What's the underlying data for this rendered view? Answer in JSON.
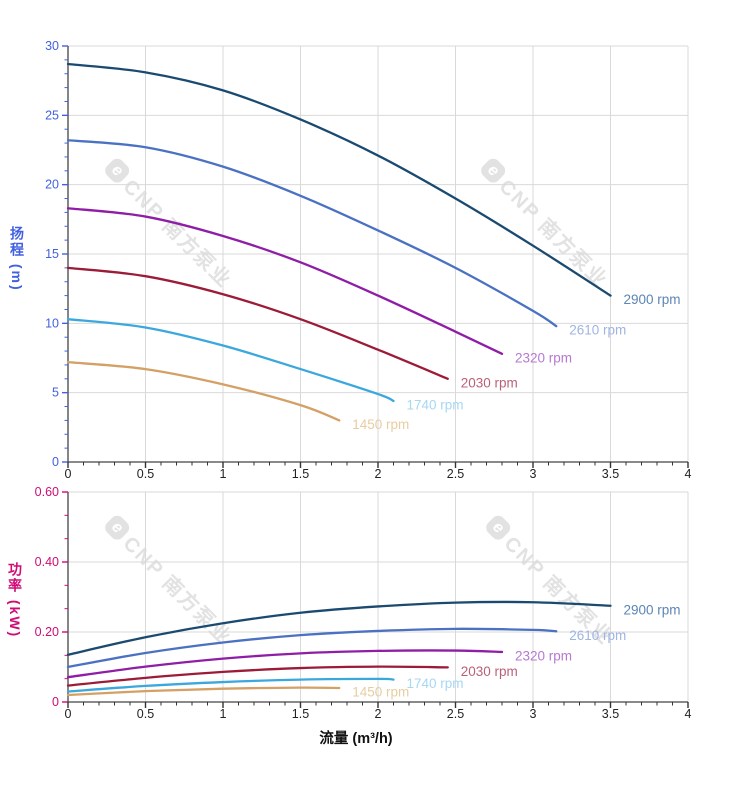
{
  "watermark": {
    "logo_letter": "e",
    "brand": "CNP 南方泵业",
    "color": "#e2e2e2"
  },
  "colors": {
    "grid": "#d9d9d9",
    "axis_line": "#444444",
    "x_tick": "#333333",
    "x_tick_label": "#222222",
    "head_axis": "#4161e0",
    "power_axis": "#cf0c75"
  },
  "chart_data": [
    {
      "type": "line",
      "title": "",
      "ylabel": "扬程 (m)",
      "xlabel": "",
      "legend_position": "curve-end-labels",
      "grid": true,
      "axis_color": "#4161e0",
      "x_axis": {
        "min": 0,
        "max": 4,
        "major": 0.5,
        "minor_divisions": 5,
        "tick_labels": [
          "0",
          "0.5",
          "1",
          "1.5",
          "2",
          "2.5",
          "3",
          "3.5",
          "4"
        ]
      },
      "y_axis": {
        "min": 0,
        "max": 30,
        "major": 5,
        "minor_divisions": 5,
        "tick_labels": [
          "0",
          "5",
          "10",
          "15",
          "20",
          "25",
          "30"
        ]
      },
      "series": [
        {
          "name": "2900 rpm",
          "color": "#1b4a70",
          "label_color": "#5c85b5",
          "x": [
            0,
            0.5,
            1,
            1.5,
            2,
            2.5,
            3,
            3.5
          ],
          "y": [
            28.7,
            28.1,
            26.8,
            24.7,
            22.1,
            19.0,
            15.6,
            12.0
          ]
        },
        {
          "name": "2610 rpm",
          "color": "#4a71c2",
          "label_color": "#9fb4e3",
          "x": [
            0,
            0.5,
            1,
            1.5,
            2,
            2.5,
            3,
            3.15
          ],
          "y": [
            23.2,
            22.7,
            21.3,
            19.2,
            16.7,
            14.0,
            10.9,
            9.8
          ]
        },
        {
          "name": "2320 rpm",
          "color": "#8f1da5",
          "label_color": "#b679d2",
          "x": [
            0,
            0.5,
            1,
            1.5,
            2,
            2.5,
            2.8
          ],
          "y": [
            18.3,
            17.7,
            16.3,
            14.4,
            12.0,
            9.4,
            7.8
          ]
        },
        {
          "name": "2030 rpm",
          "color": "#9c1c38",
          "label_color": "#b96078",
          "x": [
            0,
            0.5,
            1,
            1.5,
            2,
            2.45
          ],
          "y": [
            14.0,
            13.4,
            12.1,
            10.3,
            8.1,
            6.0
          ]
        },
        {
          "name": "1740 rpm",
          "color": "#3ba8dd",
          "label_color": "#a6d7f3",
          "x": [
            0,
            0.5,
            1,
            1.5,
            2,
            2.1
          ],
          "y": [
            10.3,
            9.7,
            8.4,
            6.7,
            4.9,
            4.4
          ]
        },
        {
          "name": "1450 rpm",
          "color": "#d4a065",
          "label_color": "#e7cda1",
          "x": [
            0,
            0.5,
            1,
            1.5,
            1.75
          ],
          "y": [
            7.2,
            6.7,
            5.6,
            4.1,
            3.0
          ]
        }
      ]
    },
    {
      "type": "line",
      "title": "",
      "ylabel": "功率 (kW)",
      "xlabel": "流量 (m³/h)",
      "legend_position": "curve-end-labels",
      "grid": true,
      "axis_color": "#cf0c75",
      "x_axis": {
        "min": 0,
        "max": 4,
        "major": 0.5,
        "minor_divisions": 5,
        "tick_labels": [
          "0",
          "0.5",
          "1",
          "1.5",
          "2",
          "2.5",
          "3",
          "3.5",
          "4"
        ]
      },
      "y_axis": {
        "min": 0,
        "max": 0.6,
        "major": 0.2,
        "minor_divisions": 3,
        "tick_labels": [
          "0",
          "0.20",
          "0.40",
          "0.60"
        ]
      },
      "series": [
        {
          "name": "2900 rpm",
          "color": "#1b4a70",
          "label_color": "#5c85b5",
          "x": [
            0,
            0.5,
            1,
            1.5,
            2,
            2.5,
            3,
            3.5
          ],
          "y": [
            0.135,
            0.185,
            0.225,
            0.255,
            0.273,
            0.284,
            0.285,
            0.275
          ]
        },
        {
          "name": "2610 rpm",
          "color": "#4a71c2",
          "label_color": "#9fb4e3",
          "x": [
            0,
            0.5,
            1,
            1.5,
            2,
            2.5,
            3,
            3.15
          ],
          "y": [
            0.1,
            0.14,
            0.17,
            0.191,
            0.203,
            0.209,
            0.206,
            0.202
          ]
        },
        {
          "name": "2320 rpm",
          "color": "#8f1da5",
          "label_color": "#b679d2",
          "x": [
            0,
            0.5,
            1,
            1.5,
            2,
            2.5,
            2.8
          ],
          "y": [
            0.071,
            0.101,
            0.124,
            0.139,
            0.146,
            0.147,
            0.143
          ]
        },
        {
          "name": "2030 rpm",
          "color": "#9c1c38",
          "label_color": "#b96078",
          "x": [
            0,
            0.5,
            1,
            1.5,
            2,
            2.45
          ],
          "y": [
            0.047,
            0.069,
            0.086,
            0.097,
            0.101,
            0.099
          ]
        },
        {
          "name": "1740 rpm",
          "color": "#3ba8dd",
          "label_color": "#a6d7f3",
          "x": [
            0,
            0.5,
            1,
            1.5,
            2,
            2.1
          ],
          "y": [
            0.03,
            0.046,
            0.057,
            0.064,
            0.066,
            0.064
          ]
        },
        {
          "name": "1450 rpm",
          "color": "#d4a065",
          "label_color": "#e7cda1",
          "x": [
            0,
            0.5,
            1,
            1.5,
            1.75
          ],
          "y": [
            0.02,
            0.031,
            0.038,
            0.041,
            0.04
          ]
        }
      ]
    }
  ]
}
